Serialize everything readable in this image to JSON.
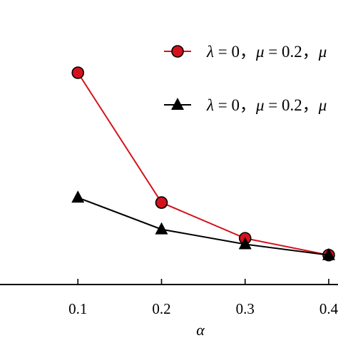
{
  "chart_data": {
    "type": "line",
    "title": "",
    "xlabel": "α",
    "ylabel": "",
    "x": [
      0.1,
      0.2,
      0.3,
      0.4
    ],
    "x_tick_labels": [
      "0.1",
      "0.2",
      "0.3",
      "0.4"
    ],
    "xlim": [
      0.0,
      0.4
    ],
    "ylim": [
      0,
      1.08
    ],
    "grid": false,
    "legend_position": "top-right",
    "series": [
      {
        "name": "λ = 0，μ = 0.2，μ",
        "legend_parts": {
          "lambda_sym": "λ",
          "lambda_val": " = 0，",
          "mu_sym": "μ",
          "mu_val": " = 0.2，",
          "mu2_sym": "μ"
        },
        "color": "#d4121c",
        "marker": "circle",
        "marker_fill": "#d4121c",
        "values": [
          1.0,
          0.345,
          0.165,
          0.08
        ]
      },
      {
        "name": "λ = 0，μ = 0.2，μ",
        "legend_parts": {
          "lambda_sym": "λ",
          "lambda_val": " = 0，",
          "mu_sym": "μ",
          "mu_val": " = 0.2，",
          "mu2_sym": "μ"
        },
        "color": "#000000",
        "marker": "triangle",
        "marker_fill": "#000000",
        "values": [
          0.37,
          0.21,
          0.135,
          0.08
        ]
      }
    ]
  }
}
